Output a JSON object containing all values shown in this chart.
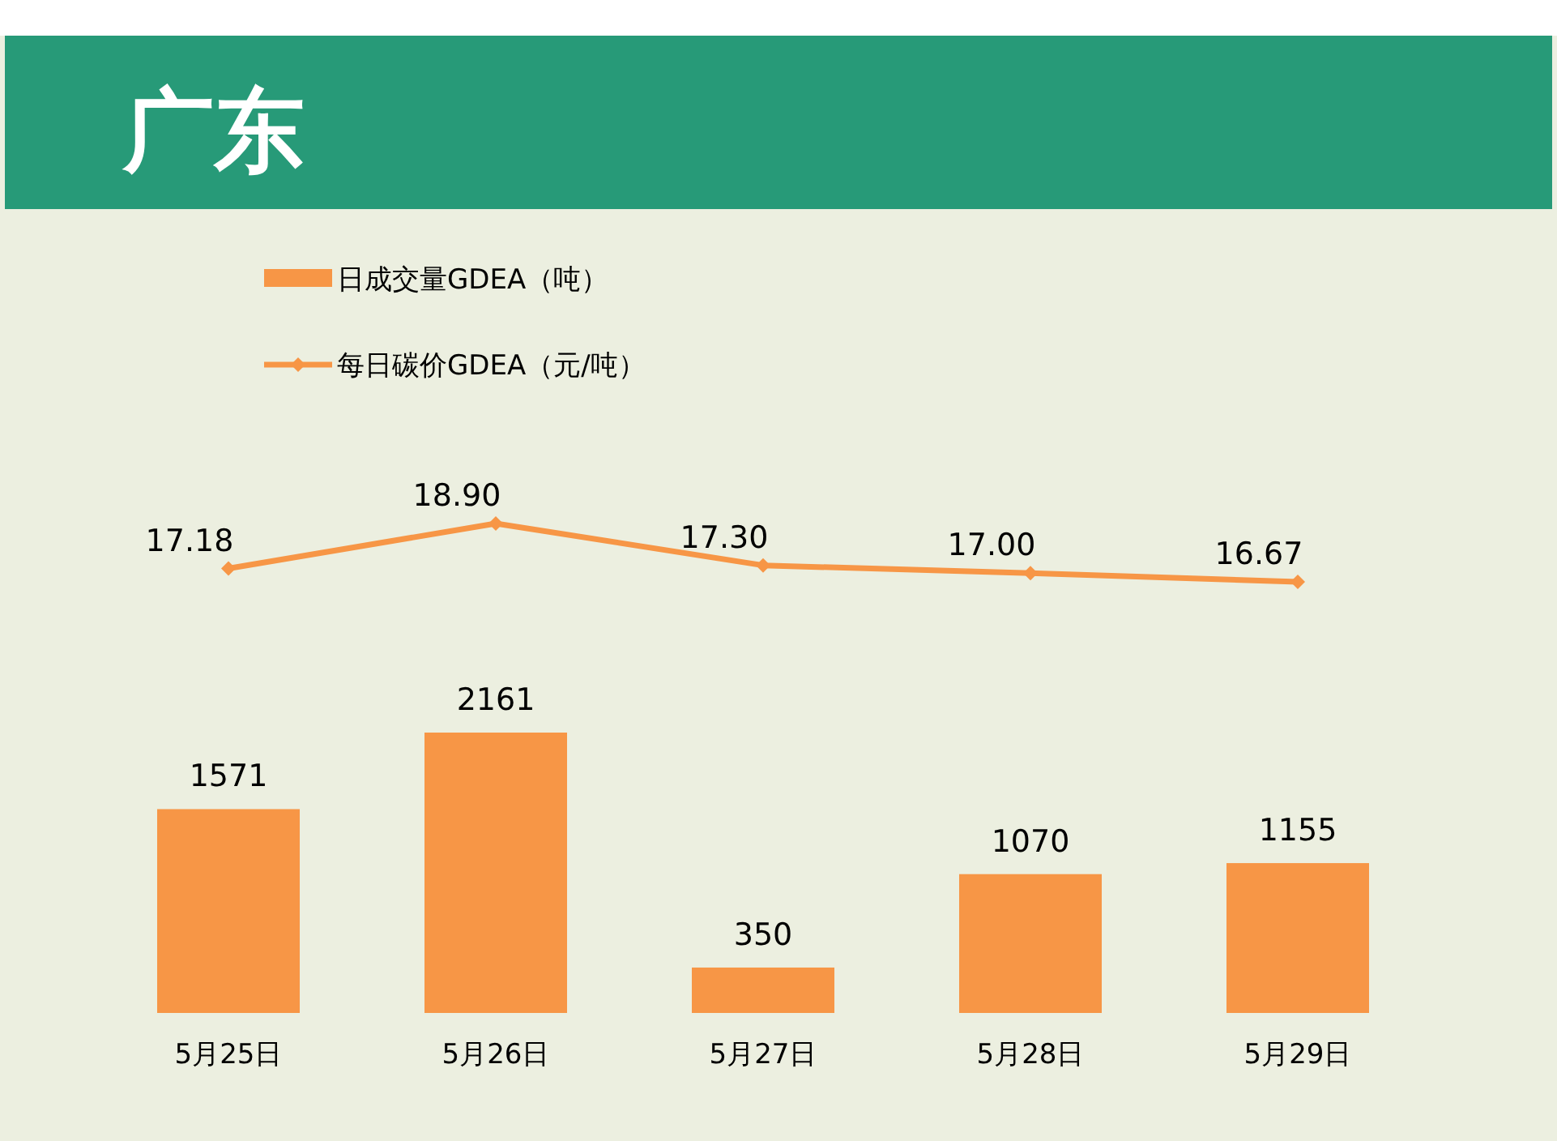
{
  "chart_data": [
    {
      "type": "line",
      "title": "广东",
      "categories": [
        null,
        null,
        null,
        null,
        null
      ],
      "series": [
        {
          "name": "每日碳价GDEA（元/吨）",
          "color": "#f79646",
          "marker": "diamond",
          "values": [
            17.18,
            18.9,
            17.3,
            17.0,
            16.67
          ],
          "value_labels": [
            "17.18",
            "18.90",
            "17.30",
            "17.00",
            "16.67"
          ]
        }
      ],
      "legend": "top left"
    },
    {
      "type": "bar",
      "categories": [
        "5月25日",
        "5月26日",
        "5月27日",
        "5月28日",
        "5月29日"
      ],
      "series": [
        {
          "name": "日成交量GDEA（吨）",
          "color": "#f79646",
          "values": [
            1571,
            2161,
            350,
            1070,
            1155
          ]
        }
      ],
      "data_labels": true,
      "legend": "top left"
    }
  ]
}
